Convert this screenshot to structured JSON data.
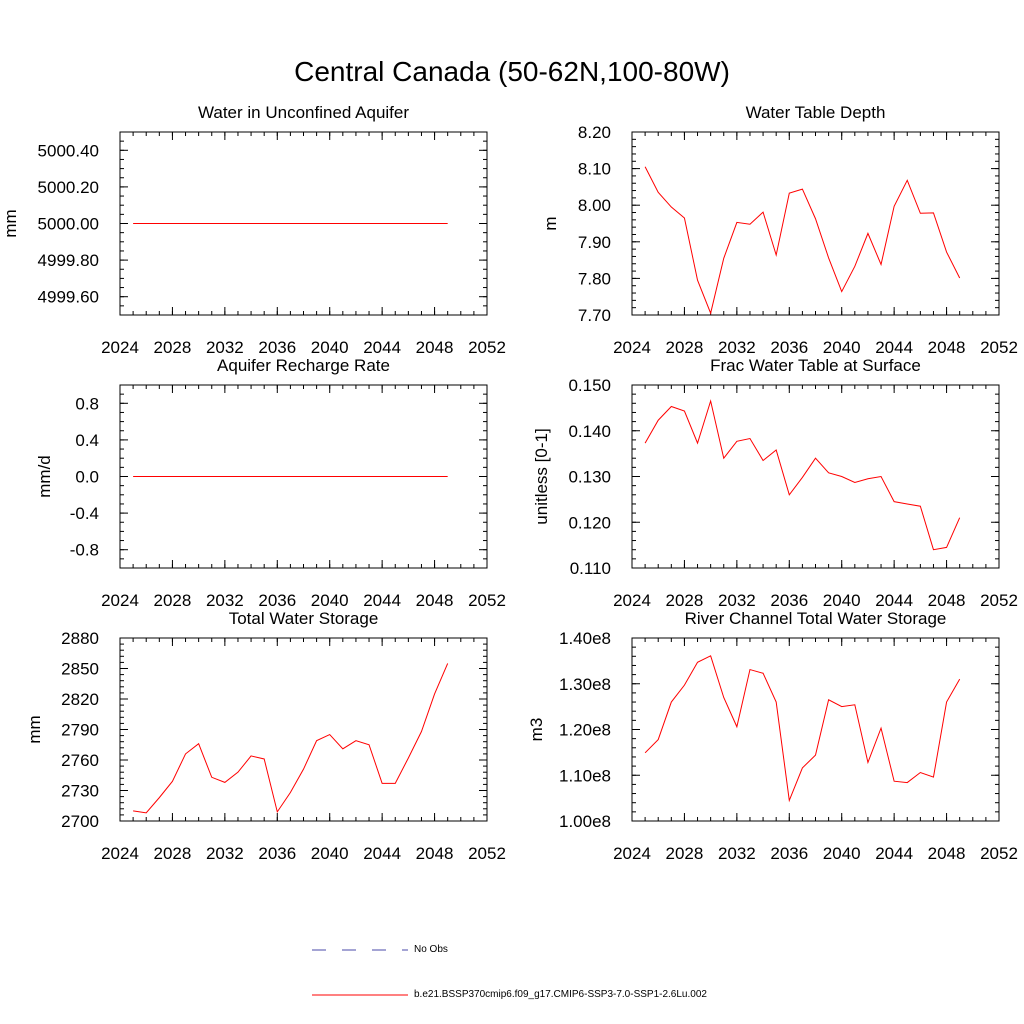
{
  "title": "Central Canada (50-62N,100-80W)",
  "legend": {
    "obs_label": "No Obs",
    "model_label": "b.e21.BSSP370cmip6.f09_g17.CMIP6-SSP3-7.0-SSP1-2.6Lu.002",
    "obs_color": "#4a4aa8",
    "model_color": "#ff0000"
  },
  "chart_data": [
    {
      "type": "line",
      "title": "Water in Unconfined Aquifer",
      "ylabel": "mm",
      "xlim": [
        2024,
        2052
      ],
      "ylim": [
        4999.5,
        5000.5
      ],
      "xticks": [
        2024,
        2028,
        2032,
        2036,
        2040,
        2044,
        2048,
        2052
      ],
      "xminor": 1,
      "yticks": [
        4999.6,
        4999.8,
        5000.0,
        5000.2,
        5000.4
      ],
      "ytick_labels": [
        "4999.60",
        "4999.80",
        "5000.00",
        "5000.20",
        "5000.40"
      ],
      "yminor": 0.05,
      "x": [
        2025,
        2026,
        2027,
        2028,
        2029,
        2030,
        2031,
        2032,
        2033,
        2034,
        2035,
        2036,
        2037,
        2038,
        2039,
        2040,
        2041,
        2042,
        2043,
        2044,
        2045,
        2046,
        2047,
        2048,
        2049
      ],
      "series": [
        {
          "color": "#ff0000",
          "values": [
            5000,
            5000,
            5000,
            5000,
            5000,
            5000,
            5000,
            5000,
            5000,
            5000,
            5000,
            5000,
            5000,
            5000,
            5000,
            5000,
            5000,
            5000,
            5000,
            5000,
            5000,
            5000,
            5000,
            5000,
            5000
          ]
        }
      ]
    },
    {
      "type": "line",
      "title": "Water Table Depth",
      "ylabel": "m",
      "xlim": [
        2024,
        2052
      ],
      "ylim": [
        7.7,
        8.2
      ],
      "xticks": [
        2024,
        2028,
        2032,
        2036,
        2040,
        2044,
        2048,
        2052
      ],
      "xminor": 1,
      "yticks": [
        7.7,
        7.8,
        7.9,
        8.0,
        8.1,
        8.2
      ],
      "ytick_labels": [
        "7.70",
        "7.80",
        "7.90",
        "8.00",
        "8.10",
        "8.20"
      ],
      "yminor": 0.02,
      "x": [
        2025,
        2026,
        2027,
        2028,
        2029,
        2030,
        2031,
        2032,
        2033,
        2034,
        2035,
        2036,
        2037,
        2038,
        2039,
        2040,
        2041,
        2042,
        2043,
        2044,
        2045,
        2046,
        2047,
        2048,
        2049
      ],
      "series": [
        {
          "color": "#ff0000",
          "values": [
            8.105,
            8.035,
            7.995,
            7.965,
            7.795,
            7.705,
            7.855,
            7.953,
            7.948,
            7.981,
            7.864,
            8.033,
            8.044,
            7.963,
            7.856,
            7.764,
            7.833,
            7.923,
            7.838,
            7.997,
            8.068,
            7.978,
            7.979,
            7.872,
            7.801
          ]
        }
      ]
    },
    {
      "type": "line",
      "title": "Aquifer Recharge Rate",
      "ylabel": "mm/d",
      "xlim": [
        2024,
        2052
      ],
      "ylim": [
        -1.0,
        1.0
      ],
      "xticks": [
        2024,
        2028,
        2032,
        2036,
        2040,
        2044,
        2048,
        2052
      ],
      "xminor": 1,
      "yticks": [
        -0.8,
        -0.4,
        0.0,
        0.4,
        0.8
      ],
      "ytick_labels": [
        "-0.8",
        "-0.4",
        "0.0",
        "0.4",
        "0.8"
      ],
      "yminor": 0.1,
      "x": [
        2025,
        2026,
        2027,
        2028,
        2029,
        2030,
        2031,
        2032,
        2033,
        2034,
        2035,
        2036,
        2037,
        2038,
        2039,
        2040,
        2041,
        2042,
        2043,
        2044,
        2045,
        2046,
        2047,
        2048,
        2049
      ],
      "series": [
        {
          "color": "#ff0000",
          "values": [
            0,
            0,
            0,
            0,
            0,
            0,
            0,
            0,
            0,
            0,
            0,
            0,
            0,
            0,
            0,
            0,
            0,
            0,
            0,
            0,
            0,
            0,
            0,
            0,
            0
          ]
        }
      ]
    },
    {
      "type": "line",
      "title": "Frac Water Table at Surface",
      "ylabel": "unitless [0-1]",
      "xlim": [
        2024,
        2052
      ],
      "ylim": [
        0.11,
        0.15
      ],
      "xticks": [
        2024,
        2028,
        2032,
        2036,
        2040,
        2044,
        2048,
        2052
      ],
      "xminor": 1,
      "yticks": [
        0.11,
        0.12,
        0.13,
        0.14,
        0.15
      ],
      "ytick_labels": [
        "0.110",
        "0.120",
        "0.130",
        "0.140",
        "0.150"
      ],
      "yminor": 0.002,
      "x": [
        2025,
        2026,
        2027,
        2028,
        2029,
        2030,
        2031,
        2032,
        2033,
        2034,
        2035,
        2036,
        2037,
        2038,
        2039,
        2040,
        2041,
        2042,
        2043,
        2044,
        2045,
        2046,
        2047,
        2048,
        2049
      ],
      "series": [
        {
          "color": "#ff0000",
          "values": [
            0.1373,
            0.1423,
            0.1453,
            0.1443,
            0.1373,
            0.1465,
            0.134,
            0.1377,
            0.1383,
            0.1335,
            0.1358,
            0.126,
            0.1298,
            0.134,
            0.1308,
            0.13,
            0.1287,
            0.1295,
            0.13,
            0.1245,
            0.124,
            0.1235,
            0.114,
            0.1145,
            0.121
          ]
        }
      ]
    },
    {
      "type": "line",
      "title": "Total Water Storage",
      "ylabel": "mm",
      "xlim": [
        2024,
        2052
      ],
      "ylim": [
        2700,
        2880
      ],
      "xticks": [
        2024,
        2028,
        2032,
        2036,
        2040,
        2044,
        2048,
        2052
      ],
      "xminor": 1,
      "yticks": [
        2700,
        2730,
        2760,
        2790,
        2820,
        2850,
        2880
      ],
      "ytick_labels": [
        "2700",
        "2730",
        "2760",
        "2790",
        "2820",
        "2850",
        "2880"
      ],
      "yminor": 6,
      "x": [
        2025,
        2026,
        2027,
        2028,
        2029,
        2030,
        2031,
        2032,
        2033,
        2034,
        2035,
        2036,
        2037,
        2038,
        2039,
        2040,
        2041,
        2042,
        2043,
        2044,
        2045,
        2046,
        2047,
        2048,
        2049
      ],
      "series": [
        {
          "color": "#ff0000",
          "values": [
            2710,
            2708,
            2723,
            2739,
            2766,
            2776,
            2743,
            2738,
            2748,
            2764,
            2761,
            2709,
            2728,
            2751,
            2779,
            2785,
            2771,
            2779,
            2775,
            2737,
            2737,
            2762,
            2788,
            2825,
            2855
          ]
        }
      ]
    },
    {
      "type": "line",
      "title": "River Channel Total Water Storage",
      "ylabel": "m3",
      "xlim": [
        2024,
        2052
      ],
      "ylim": [
        100000000.0,
        140000000.0
      ],
      "xticks": [
        2024,
        2028,
        2032,
        2036,
        2040,
        2044,
        2048,
        2052
      ],
      "xminor": 1,
      "yticks": [
        100000000.0,
        110000000.0,
        120000000.0,
        130000000.0,
        140000000.0
      ],
      "ytick_labels": [
        "1.00e8",
        "1.10e8",
        "1.20e8",
        "1.30e8",
        "1.40e8"
      ],
      "yminor": 2000000,
      "x": [
        2025,
        2026,
        2027,
        2028,
        2029,
        2030,
        2031,
        2032,
        2033,
        2034,
        2035,
        2036,
        2037,
        2038,
        2039,
        2040,
        2041,
        2042,
        2043,
        2044,
        2045,
        2046,
        2047,
        2048,
        2049
      ],
      "series": [
        {
          "color": "#ff0000",
          "values": [
            114900000,
            117800000,
            126000000,
            129700000,
            134700000,
            136100000,
            127000000,
            120600000,
            133100000,
            132300000,
            126000000,
            104500000,
            111600000,
            114400000,
            126500000,
            125000000,
            125400000,
            112800000,
            120300000,
            108700000,
            108400000,
            110600000,
            109600000,
            126000000,
            131000000
          ]
        }
      ]
    }
  ]
}
